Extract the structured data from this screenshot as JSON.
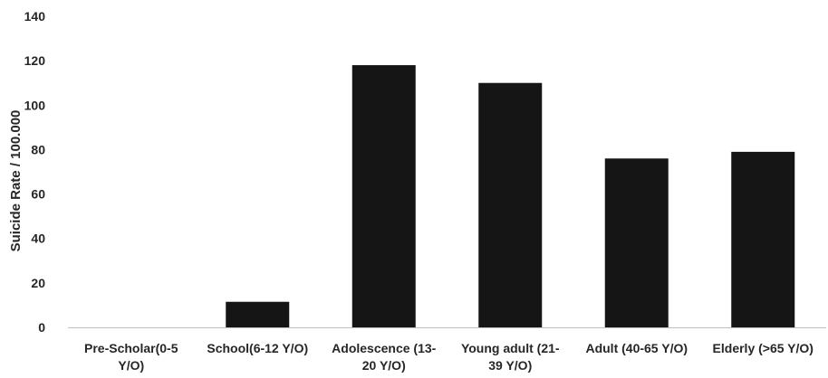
{
  "chart_data": {
    "type": "bar",
    "title": "",
    "xlabel": "",
    "ylabel": "Suicide Rate / 100.000",
    "ylim": [
      0,
      140
    ],
    "yticks": [
      0,
      20,
      40,
      60,
      80,
      100,
      120,
      140
    ],
    "grid": false,
    "legend": "none",
    "bar_color": "#151515",
    "categories": [
      [
        "Pre-Scholar(0-5",
        "Y/O)"
      ],
      [
        "School(6-12 Y/O)"
      ],
      [
        "Adolescence (13-",
        "20 Y/O)"
      ],
      [
        "Young adult (21-",
        "39 Y/O)"
      ],
      [
        "Adult (40-65 Y/O)"
      ],
      [
        "Elderly (>65 Y/O)"
      ]
    ],
    "values": [
      0,
      11.5,
      118,
      110,
      76,
      79
    ]
  }
}
